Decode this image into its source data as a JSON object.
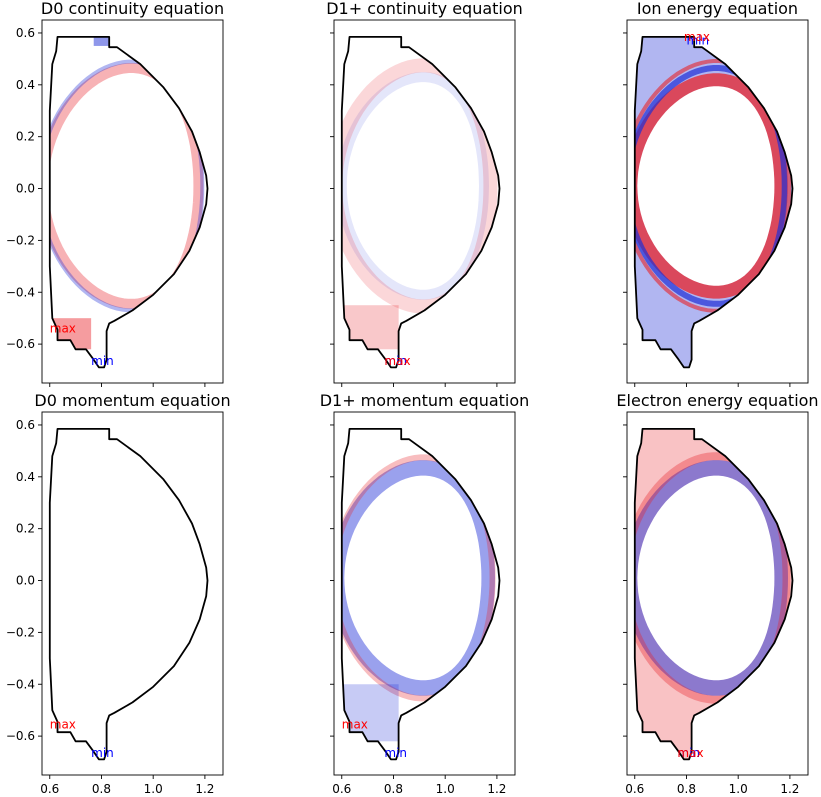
{
  "colors": {
    "positive": "#e8232a",
    "negative": "#1f2fd6",
    "wall": "#000000",
    "label_max": "#ff0000",
    "label_min": "#0000ff"
  },
  "chart_data": [
    {
      "type": "heatmap",
      "title": "D0 continuity equation",
      "xlim": [
        0.57,
        1.27
      ],
      "ylim": [
        -0.75,
        0.65
      ],
      "xticks": [],
      "yticks": [
        "0.6",
        "0.4",
        "0.2",
        "0.0",
        "−0.2",
        "−0.4",
        "−0.6"
      ],
      "show_xtick_labels": false,
      "show_ytick_labels": true,
      "pattern": "outer_edge",
      "annotations": [
        {
          "text": "max",
          "x": 0.6,
          "y": -0.54,
          "color": "#ff0000"
        },
        {
          "text": "min",
          "x": 0.76,
          "y": -0.665,
          "color": "#0000ff"
        }
      ]
    },
    {
      "type": "heatmap",
      "title": "D1+ continuity equation",
      "xlim": [
        0.57,
        1.27
      ],
      "ylim": [
        -0.75,
        0.65
      ],
      "xticks": [],
      "yticks": [],
      "show_xtick_labels": false,
      "show_ytick_labels": false,
      "pattern": "faint_band",
      "annotations": [
        {
          "text": "min",
          "x": 0.765,
          "y": -0.665,
          "color": "#0000ff"
        },
        {
          "text": "max",
          "x": 0.765,
          "y": -0.665,
          "color": "#ff0000"
        }
      ]
    },
    {
      "type": "heatmap",
      "title": "Ion energy equation",
      "xlim": [
        0.57,
        1.27
      ],
      "ylim": [
        -0.75,
        0.65
      ],
      "xticks": [],
      "yticks": [],
      "show_xtick_labels": false,
      "show_ytick_labels": false,
      "pattern": "ion_energy",
      "annotations": [
        {
          "text": "min",
          "x": 0.8,
          "y": 0.57,
          "color": "#0000ff"
        },
        {
          "text": "max",
          "x": 0.79,
          "y": 0.585,
          "color": "#ff0000"
        }
      ]
    },
    {
      "type": "heatmap",
      "title": "D0 momentum equation",
      "xlim": [
        0.57,
        1.27
      ],
      "ylim": [
        -0.75,
        0.65
      ],
      "xticks": [
        "0.6",
        "0.8",
        "1.0",
        "1.2"
      ],
      "yticks": [
        "0.6",
        "0.4",
        "0.2",
        "0.0",
        "−0.2",
        "−0.4",
        "−0.6"
      ],
      "show_xtick_labels": true,
      "show_ytick_labels": true,
      "pattern": "none",
      "annotations": [
        {
          "text": "max",
          "x": 0.6,
          "y": -0.555,
          "color": "#ff0000"
        },
        {
          "text": "min",
          "x": 0.76,
          "y": -0.665,
          "color": "#0000ff"
        }
      ]
    },
    {
      "type": "heatmap",
      "title": "D1+ momentum equation",
      "xlim": [
        0.57,
        1.27
      ],
      "ylim": [
        -0.75,
        0.65
      ],
      "xticks": [
        "0.6",
        "0.8",
        "1.0",
        "1.2"
      ],
      "yticks": [],
      "show_xtick_labels": true,
      "show_ytick_labels": false,
      "pattern": "d1_momentum",
      "annotations": [
        {
          "text": "max",
          "x": 0.6,
          "y": -0.555,
          "color": "#ff0000"
        },
        {
          "text": "min",
          "x": 0.765,
          "y": -0.665,
          "color": "#0000ff"
        }
      ]
    },
    {
      "type": "heatmap",
      "title": "Electron energy equation",
      "xlim": [
        0.57,
        1.27
      ],
      "ylim": [
        -0.75,
        0.65
      ],
      "xticks": [
        "0.6",
        "0.8",
        "1.0",
        "1.2"
      ],
      "yticks": [],
      "show_xtick_labels": true,
      "show_ytick_labels": false,
      "pattern": "electron_energy",
      "annotations": [
        {
          "text": "min",
          "x": 0.765,
          "y": -0.665,
          "color": "#0000ff"
        },
        {
          "text": "max",
          "x": 0.765,
          "y": -0.665,
          "color": "#ff0000"
        }
      ]
    }
  ]
}
